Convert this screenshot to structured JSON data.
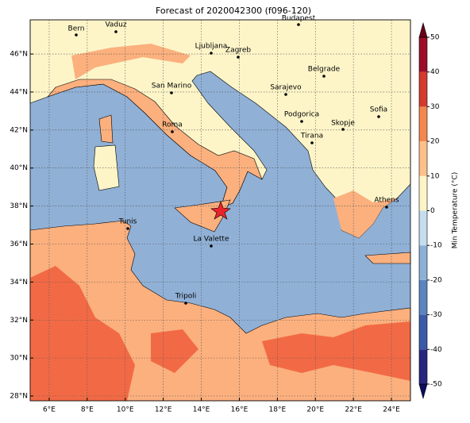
{
  "title": "Forecast of 2020042300 (f096-120)",
  "lon_ticks": [
    {
      "value": 6,
      "label": "6°E"
    },
    {
      "value": 8,
      "label": "8°E"
    },
    {
      "value": 10,
      "label": "10°E"
    },
    {
      "value": 12,
      "label": "12°E"
    },
    {
      "value": 14,
      "label": "14°E"
    },
    {
      "value": 16,
      "label": "16°E"
    },
    {
      "value": 18,
      "label": "18°E"
    },
    {
      "value": 20,
      "label": "20°E"
    },
    {
      "value": 22,
      "label": "22°E"
    },
    {
      "value": 24,
      "label": "24°E"
    }
  ],
  "lat_ticks": [
    {
      "value": 28,
      "label": "28°N"
    },
    {
      "value": 30,
      "label": "30°N"
    },
    {
      "value": 32,
      "label": "32°N"
    },
    {
      "value": 34,
      "label": "34°N"
    },
    {
      "value": 36,
      "label": "36°N"
    },
    {
      "value": 38,
      "label": "38°N"
    },
    {
      "value": 40,
      "label": "40°N"
    },
    {
      "value": 42,
      "label": "42°N"
    },
    {
      "value": 44,
      "label": "44°N"
    },
    {
      "value": 46,
      "label": "46°N"
    }
  ],
  "cities": [
    "Bern",
    "Vaduz",
    "Budapest",
    "Ljubljana",
    "Zagreb",
    "Belgrade",
    "San Marino",
    "Sarajevo",
    "Sofia",
    "Podgorica",
    "Skopje",
    "Roma",
    "Tirana",
    "Athens",
    "Tunis",
    "La Valette",
    "Tripoli"
  ],
  "colorbar": {
    "label": "Min Temperature (°C)",
    "ticks": [
      -50,
      -40,
      -30,
      -20,
      -10,
      0,
      10,
      20,
      30,
      40,
      50
    ],
    "colors": [
      "#262680",
      "#3a5aa8",
      "#5b84c0",
      "#8db0d6",
      "#c5dded",
      "#fdf5c8",
      "#fdc08a",
      "#f4874f",
      "#d63a2e",
      "#9c0d25"
    ],
    "extend_colors": [
      "#0c0c60",
      "#6a0018"
    ]
  }
}
